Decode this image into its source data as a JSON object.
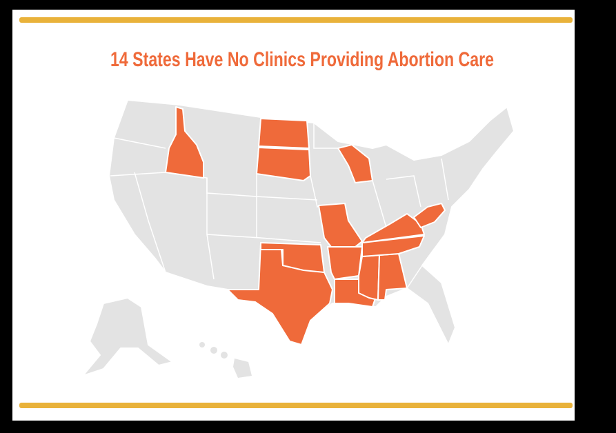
{
  "title": "14 States Have No Clinics Providing Abortion Care"
}
